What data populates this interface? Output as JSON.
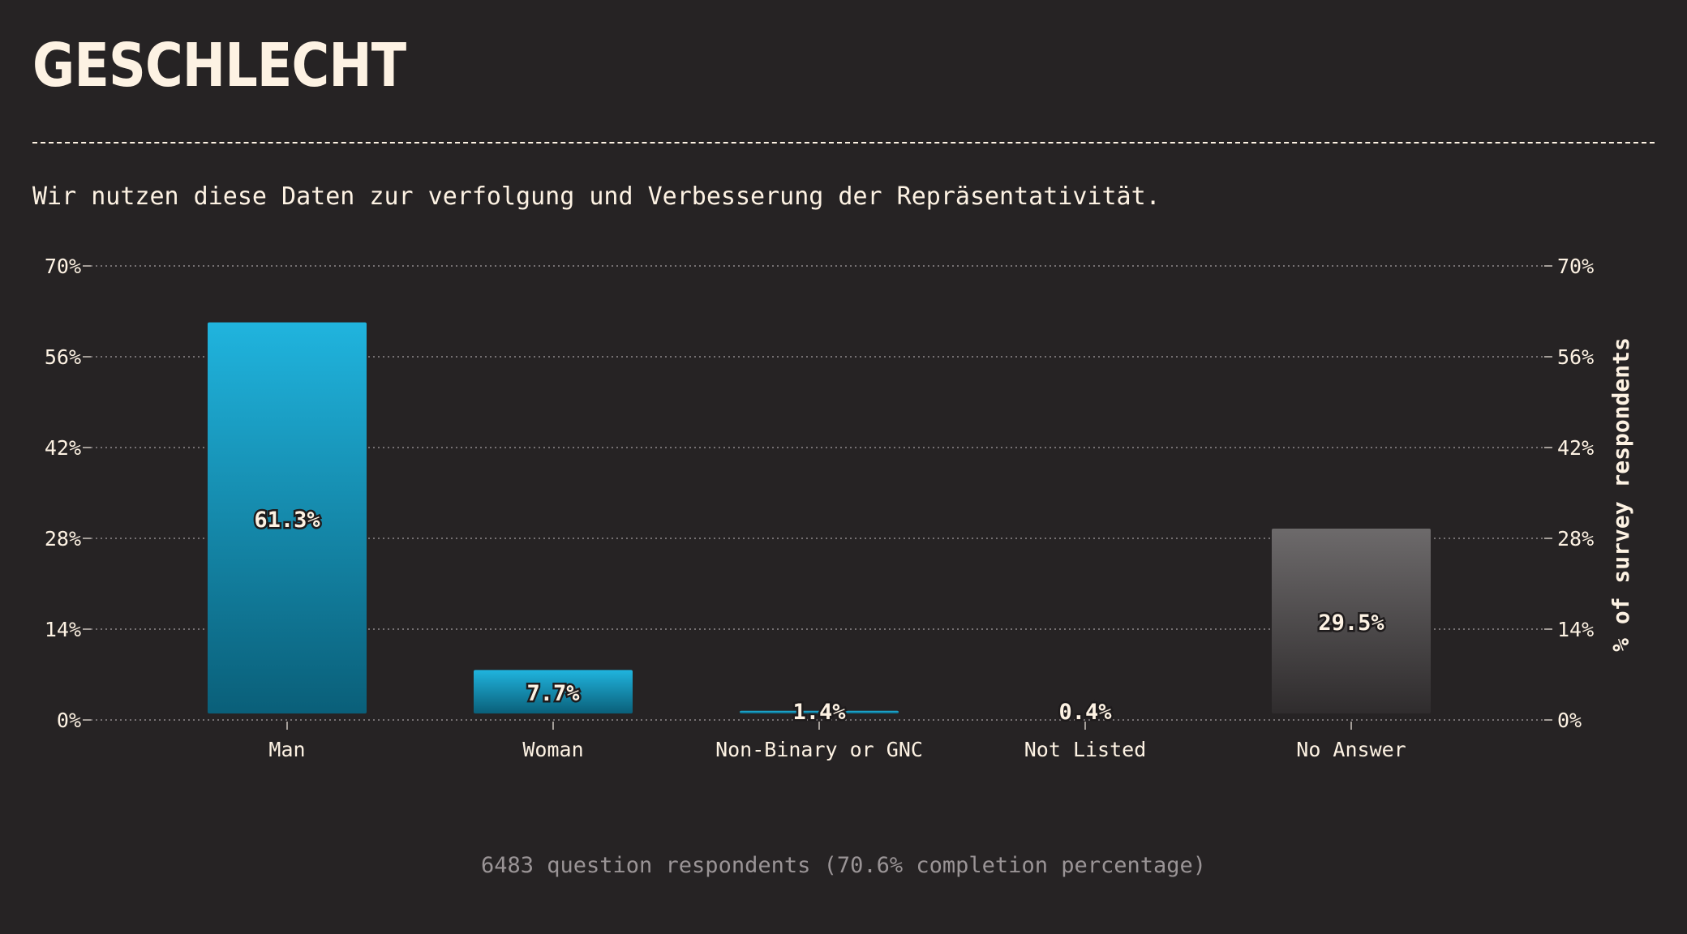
{
  "page": {
    "title": "GESCHLECHT",
    "subtitle": "Wir nutzen diese Daten zur verfolgung und Verbesserung der Repräsentativität.",
    "footer": "6483 question respondents (70.6% completion percentage)"
  },
  "chart_data": {
    "type": "bar",
    "categories": [
      "Man",
      "Woman",
      "Non-Binary or GNC",
      "Not Listed",
      "No Answer"
    ],
    "values": [
      61.3,
      7.7,
      1.4,
      0.4,
      29.5
    ],
    "value_labels": [
      "61.3%",
      "7.7%",
      "1.4%",
      "0.4%",
      "29.5%"
    ],
    "bar_colors": [
      "#1fb3dc",
      "#1fb3dc",
      "#1fb3dc",
      "#1fb3dc",
      "#6b6869"
    ],
    "ylim": [
      0,
      70
    ],
    "yticks": [
      0,
      14,
      28,
      42,
      56,
      70
    ],
    "ytick_labels": [
      "0%",
      "14%",
      "28%",
      "42%",
      "56%",
      "70%"
    ],
    "ylabel": "% of survey respondents",
    "xlabel": "",
    "grid": true
  }
}
